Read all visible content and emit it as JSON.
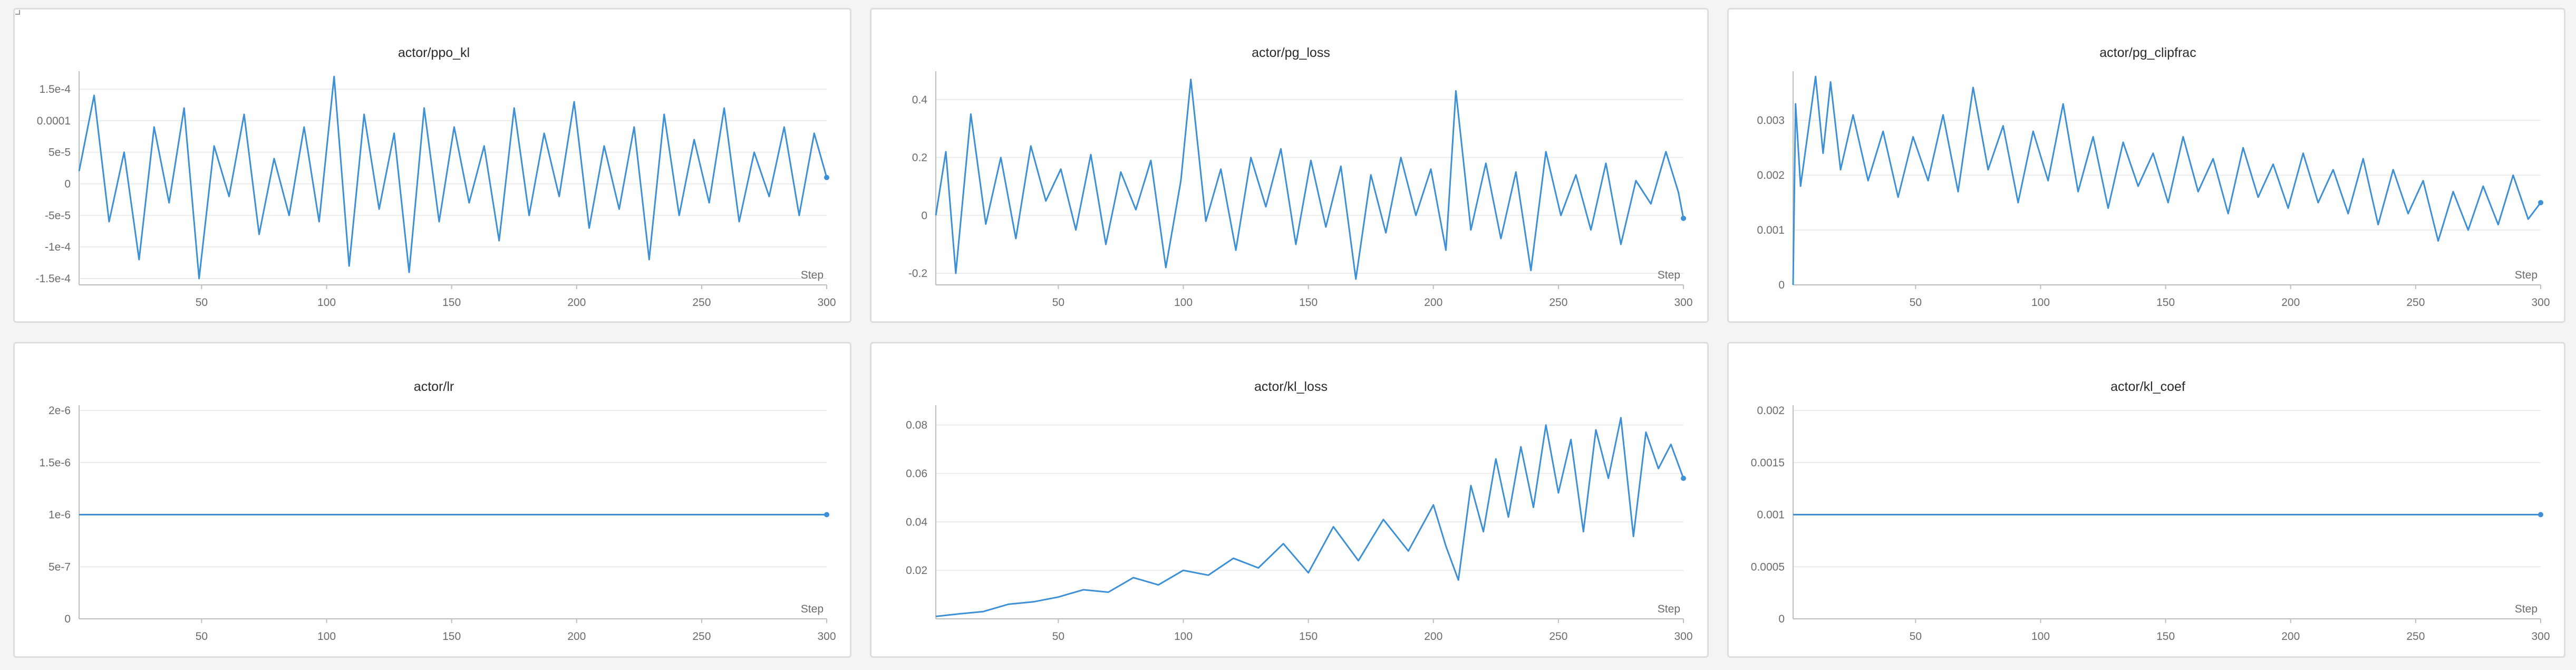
{
  "colors": {
    "line": "#3d8fd6"
  },
  "icons": {
    "panel_resize": "resize-handle-icon"
  },
  "chart_data": [
    {
      "type": "line",
      "title": "actor/ppo_kl",
      "xlabel": "Step",
      "ylabel": "",
      "xlim": [
        1,
        300
      ],
      "ylim": [
        -0.00016,
        0.00017
      ],
      "xticks": [
        50,
        100,
        150,
        200,
        250,
        300
      ],
      "xtick_labels": [
        "50",
        "100",
        "150",
        "200",
        "250",
        "300"
      ],
      "yticks": [
        -0.00015,
        -0.0001,
        -5e-05,
        0,
        5e-05,
        0.0001,
        0.00015
      ],
      "ytick_labels": [
        "-1.5e-4",
        "-1e-4",
        "-5e-5",
        "0",
        "5e-5",
        "0.0001",
        "1.5e-4"
      ],
      "grid": true,
      "legend": "none",
      "series": [
        {
          "x": [
            1,
            7,
            13,
            19,
            25,
            31,
            37,
            43,
            49,
            55,
            61,
            67,
            73,
            79,
            85,
            91,
            97,
            103,
            109,
            115,
            121,
            127,
            133,
            139,
            145,
            151,
            157,
            163,
            169,
            175,
            181,
            187,
            193,
            199,
            205,
            211,
            217,
            223,
            229,
            235,
            241,
            247,
            253,
            259,
            265,
            271,
            277,
            283,
            289,
            295,
            300
          ],
          "values": [
            2e-05,
            0.00014,
            -6e-05,
            5e-05,
            -0.00012,
            9e-05,
            -3e-05,
            0.00012,
            -0.00015,
            6e-05,
            -2e-05,
            0.00011,
            -8e-05,
            4e-05,
            -5e-05,
            9e-05,
            -6e-05,
            0.00017,
            -0.00013,
            0.00011,
            -4e-05,
            8e-05,
            -0.00014,
            0.00012,
            -6e-05,
            9e-05,
            -3e-05,
            6e-05,
            -9e-05,
            0.00012,
            -5e-05,
            8e-05,
            -2e-05,
            0.00013,
            -7e-05,
            6e-05,
            -4e-05,
            9e-05,
            -0.00012,
            0.00011,
            -5e-05,
            7e-05,
            -3e-05,
            0.00012,
            -6e-05,
            5e-05,
            -2e-05,
            9e-05,
            -5e-05,
            8e-05,
            1e-05
          ]
        }
      ]
    },
    {
      "type": "line",
      "title": "actor/pg_loss",
      "xlabel": "Step",
      "ylabel": "",
      "xlim": [
        1,
        300
      ],
      "ylim": [
        -0.24,
        0.48
      ],
      "xticks": [
        50,
        100,
        150,
        200,
        250,
        300
      ],
      "xtick_labels": [
        "50",
        "100",
        "150",
        "200",
        "250",
        "300"
      ],
      "yticks": [
        -0.2,
        0,
        0.2,
        0.4
      ],
      "ytick_labels": [
        "-0.2",
        "0",
        "0.2",
        "0.4"
      ],
      "grid": true,
      "legend": "none",
      "series": [
        {
          "x": [
            1,
            5,
            9,
            15,
            21,
            27,
            33,
            39,
            45,
            51,
            57,
            63,
            69,
            75,
            81,
            87,
            93,
            99,
            103,
            109,
            115,
            121,
            127,
            133,
            139,
            145,
            151,
            157,
            163,
            169,
            175,
            181,
            187,
            193,
            199,
            205,
            209,
            215,
            221,
            227,
            233,
            239,
            245,
            251,
            257,
            263,
            269,
            275,
            281,
            287,
            293,
            298,
            300
          ],
          "values": [
            0.0,
            0.22,
            -0.2,
            0.35,
            -0.03,
            0.2,
            -0.08,
            0.24,
            0.05,
            0.16,
            -0.05,
            0.21,
            -0.1,
            0.15,
            0.02,
            0.19,
            -0.18,
            0.12,
            0.47,
            -0.02,
            0.16,
            -0.12,
            0.2,
            0.03,
            0.23,
            -0.1,
            0.19,
            -0.04,
            0.17,
            -0.22,
            0.14,
            -0.06,
            0.2,
            0.0,
            0.16,
            -0.12,
            0.43,
            -0.05,
            0.18,
            -0.08,
            0.15,
            -0.19,
            0.22,
            0.0,
            0.14,
            -0.05,
            0.18,
            -0.1,
            0.12,
            0.04,
            0.22,
            0.08,
            -0.01
          ]
        }
      ]
    },
    {
      "type": "line",
      "title": "actor/pg_clipfrac",
      "xlabel": "Step",
      "ylabel": "",
      "xlim": [
        1,
        300
      ],
      "ylim": [
        0,
        0.0038
      ],
      "xticks": [
        50,
        100,
        150,
        200,
        250,
        300
      ],
      "xtick_labels": [
        "50",
        "100",
        "150",
        "200",
        "250",
        "300"
      ],
      "yticks": [
        0,
        0.001,
        0.002,
        0.003
      ],
      "ytick_labels": [
        "0",
        "0.001",
        "0.002",
        "0.003"
      ],
      "grid": true,
      "legend": "none",
      "series": [
        {
          "x": [
            1,
            2,
            4,
            7,
            10,
            13,
            16,
            20,
            25,
            31,
            37,
            43,
            49,
            55,
            61,
            67,
            73,
            79,
            85,
            91,
            97,
            103,
            109,
            115,
            121,
            127,
            133,
            139,
            145,
            151,
            157,
            163,
            169,
            175,
            181,
            187,
            193,
            199,
            205,
            211,
            217,
            223,
            229,
            235,
            241,
            247,
            253,
            259,
            265,
            271,
            277,
            283,
            289,
            295,
            300
          ],
          "values": [
            0.0,
            0.0033,
            0.0018,
            0.0028,
            0.0038,
            0.0024,
            0.0037,
            0.0021,
            0.0031,
            0.0019,
            0.0028,
            0.0016,
            0.0027,
            0.0019,
            0.0031,
            0.0017,
            0.0036,
            0.0021,
            0.0029,
            0.0015,
            0.0028,
            0.0019,
            0.0033,
            0.0017,
            0.0027,
            0.0014,
            0.0026,
            0.0018,
            0.0024,
            0.0015,
            0.0027,
            0.0017,
            0.0023,
            0.0013,
            0.0025,
            0.0016,
            0.0022,
            0.0014,
            0.0024,
            0.0015,
            0.0021,
            0.0013,
            0.0023,
            0.0011,
            0.0021,
            0.0013,
            0.0019,
            0.0008,
            0.0017,
            0.001,
            0.0018,
            0.0011,
            0.002,
            0.0012,
            0.0015
          ]
        }
      ]
    },
    {
      "type": "line",
      "title": "actor/lr",
      "xlabel": "Step",
      "ylabel": "",
      "xlim": [
        1,
        300
      ],
      "ylim": [
        0,
        2e-06
      ],
      "xticks": [
        50,
        100,
        150,
        200,
        250,
        300
      ],
      "xtick_labels": [
        "50",
        "100",
        "150",
        "200",
        "250",
        "300"
      ],
      "yticks": [
        0,
        5e-07,
        1e-06,
        1.5e-06,
        2e-06
      ],
      "ytick_labels": [
        "0",
        "5e-7",
        "1e-6",
        "1.5e-6",
        "2e-6"
      ],
      "grid": true,
      "legend": "none",
      "series": [
        {
          "x": [
            1,
            300
          ],
          "values": [
            1e-06,
            1e-06
          ]
        }
      ]
    },
    {
      "type": "line",
      "title": "actor/kl_loss",
      "xlabel": "Step",
      "ylabel": "",
      "xlim": [
        1,
        300
      ],
      "ylim": [
        0,
        0.086
      ],
      "xticks": [
        50,
        100,
        150,
        200,
        250,
        300
      ],
      "xtick_labels": [
        "50",
        "100",
        "150",
        "200",
        "250",
        "300"
      ],
      "yticks": [
        0.02,
        0.04,
        0.06,
        0.08
      ],
      "ytick_labels": [
        "0.02",
        "0.04",
        "0.06",
        "0.08"
      ],
      "grid": true,
      "legend": "none",
      "series": [
        {
          "x": [
            1,
            10,
            20,
            30,
            40,
            50,
            60,
            70,
            80,
            90,
            100,
            110,
            120,
            130,
            140,
            150,
            160,
            170,
            180,
            190,
            200,
            205,
            210,
            215,
            220,
            225,
            230,
            235,
            240,
            245,
            250,
            255,
            260,
            265,
            270,
            275,
            280,
            285,
            290,
            295,
            300
          ],
          "values": [
            0.001,
            0.002,
            0.003,
            0.006,
            0.007,
            0.009,
            0.012,
            0.011,
            0.017,
            0.014,
            0.02,
            0.018,
            0.025,
            0.021,
            0.031,
            0.019,
            0.038,
            0.024,
            0.041,
            0.028,
            0.047,
            0.03,
            0.016,
            0.055,
            0.036,
            0.066,
            0.042,
            0.071,
            0.046,
            0.08,
            0.052,
            0.074,
            0.036,
            0.078,
            0.058,
            0.083,
            0.034,
            0.077,
            0.062,
            0.072,
            0.058
          ]
        }
      ]
    },
    {
      "type": "line",
      "title": "actor/kl_coef",
      "xlabel": "Step",
      "ylabel": "",
      "xlim": [
        1,
        300
      ],
      "ylim": [
        0,
        0.002
      ],
      "xticks": [
        50,
        100,
        150,
        200,
        250,
        300
      ],
      "xtick_labels": [
        "50",
        "100",
        "150",
        "200",
        "250",
        "300"
      ],
      "yticks": [
        0,
        0.0005,
        0.001,
        0.0015,
        0.002
      ],
      "ytick_labels": [
        "0",
        "0.0005",
        "0.001",
        "0.0015",
        "0.002"
      ],
      "grid": true,
      "legend": "none",
      "series": [
        {
          "x": [
            1,
            300
          ],
          "values": [
            0.001,
            0.001
          ]
        }
      ]
    }
  ]
}
